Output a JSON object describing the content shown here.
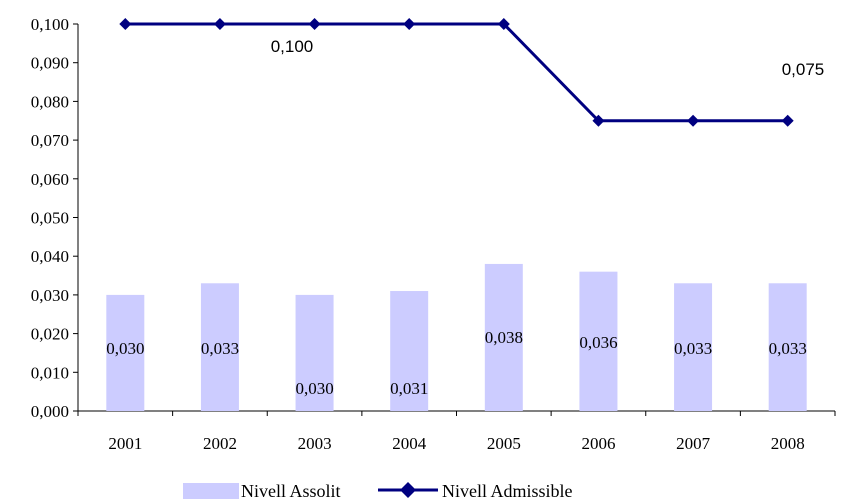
{
  "chart_data": {
    "type": "bar+line",
    "categories": [
      "2001",
      "2002",
      "2003",
      "2004",
      "2005",
      "2006",
      "2007",
      "2008"
    ],
    "ylim": [
      0,
      0.1
    ],
    "yticks": [
      "0,000",
      "0,010",
      "0,020",
      "0,030",
      "0,040",
      "0,050",
      "0,060",
      "0,070",
      "0,080",
      "0,090",
      "0,100"
    ],
    "grid": false,
    "legend_position": "bottom",
    "series": [
      {
        "name": "Nivell Assolit",
        "type": "bar",
        "color": "#ccccff",
        "values": [
          0.03,
          0.033,
          0.03,
          0.031,
          0.038,
          0.036,
          0.033,
          0.033
        ],
        "labels": [
          "0,030",
          "0,033",
          "0,030",
          "0,031",
          "0,038",
          "0,036",
          "0,033",
          "0,033"
        ]
      },
      {
        "name": "Nivell Admissible",
        "type": "line",
        "marker": "diamond",
        "color": "#000080",
        "values": [
          0.1,
          0.1,
          0.1,
          0.1,
          0.1,
          0.075,
          0.075,
          0.075
        ],
        "annotations": [
          "0,100",
          "0,075"
        ]
      }
    ]
  }
}
